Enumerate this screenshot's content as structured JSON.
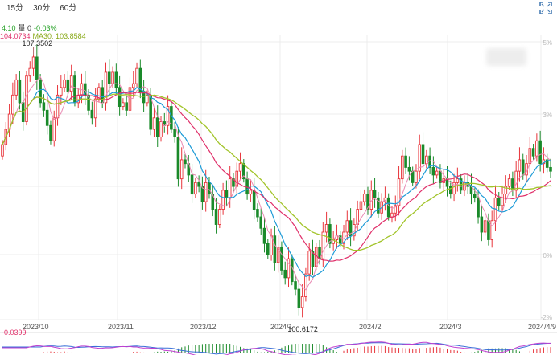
{
  "toolbar": {
    "tabs": [
      "15分",
      "30分",
      "60分"
    ],
    "fullscreen_icon": "fullscreen-icon"
  },
  "legend": {
    "line1": {
      "value": "4.10",
      "volume_label": "量 0",
      "change": "-0.03%"
    },
    "line2": {
      "ma_a": "104.0734",
      "ma30": "MA30: 103.8584"
    }
  },
  "colors": {
    "up": "#e8343a",
    "down": "#1a8a2a",
    "ma_short": "#1e9bd7",
    "ma_mid": "#e0306a",
    "ma_long": "#a2c42a",
    "pink": "#e98bb3",
    "grid": "#ececec",
    "axis_text": "#888888",
    "green_text": "#22a022",
    "red_text": "#e0306a"
  },
  "chart_data": {
    "type": "candlestick",
    "xticks": [
      "2023/10",
      "2023/11",
      "2023/12",
      "2024/1",
      "2024/2",
      "2024/3",
      "2024/4/9"
    ],
    "yticks_right": [
      "5%",
      "3%",
      "0%",
      "-2%"
    ],
    "annotations": {
      "high": "107.3502",
      "low": "100.6172",
      "macd_value": "-0.0399"
    },
    "ylim": [
      100.3,
      107.6
    ],
    "closes": [
      104.9,
      105.3,
      105.7,
      106.2,
      106.6,
      106.0,
      105.5,
      106.7,
      106.9,
      107.2,
      106.6,
      106.0,
      105.8,
      105.4,
      105.0,
      105.6,
      106.2,
      106.4,
      106.6,
      106.3,
      106.7,
      106.0,
      106.2,
      106.5,
      106.2,
      105.8,
      105.6,
      106.1,
      106.4,
      106.0,
      106.8,
      106.5,
      106.8,
      106.4,
      105.9,
      106.0,
      105.8,
      106.4,
      106.5,
      106.9,
      106.3,
      106.0,
      106.2,
      105.3,
      105.6,
      105.1,
      105.5,
      105.4,
      105.9,
      105.3,
      105.1,
      104.0,
      104.5,
      104.4,
      104.1,
      103.6,
      103.9,
      103.8,
      103.4,
      103.9,
      103.6,
      103.2,
      102.8,
      103.2,
      103.7,
      103.5,
      104.0,
      103.8,
      104.2,
      104.4,
      104.0,
      103.6,
      103.7,
      103.2,
      103.0,
      102.7,
      102.3,
      102.0,
      102.5,
      101.8,
      102.2,
      101.6,
      101.4,
      101.9,
      101.3,
      101.1,
      100.62,
      100.9,
      101.5,
      102.1,
      101.7,
      102.2,
      101.9,
      102.6,
      102.8,
      102.3,
      102.4,
      102.5,
      102.3,
      102.6,
      102.9,
      102.5,
      102.8,
      103.2,
      103.4,
      103.6,
      103.2,
      103.7,
      103.5,
      103.1,
      103.4,
      103.5,
      103.0,
      103.1,
      103.3,
      104.0,
      104.6,
      104.3,
      104.2,
      103.9,
      104.2,
      104.9,
      104.4,
      104.6,
      104.3,
      104.1,
      104.2,
      103.9,
      104.0,
      103.8,
      103.6,
      103.9,
      104.0,
      103.7,
      103.9,
      103.8,
      103.6,
      103.5,
      103.0,
      102.6,
      102.9,
      102.4,
      102.9,
      103.5,
      103.3,
      103.6,
      103.8,
      104.0,
      103.7,
      104.2,
      104.5,
      104.1,
      104.4,
      104.8,
      104.6,
      105.0,
      104.4,
      104.5,
      104.3,
      104.2
    ]
  }
}
